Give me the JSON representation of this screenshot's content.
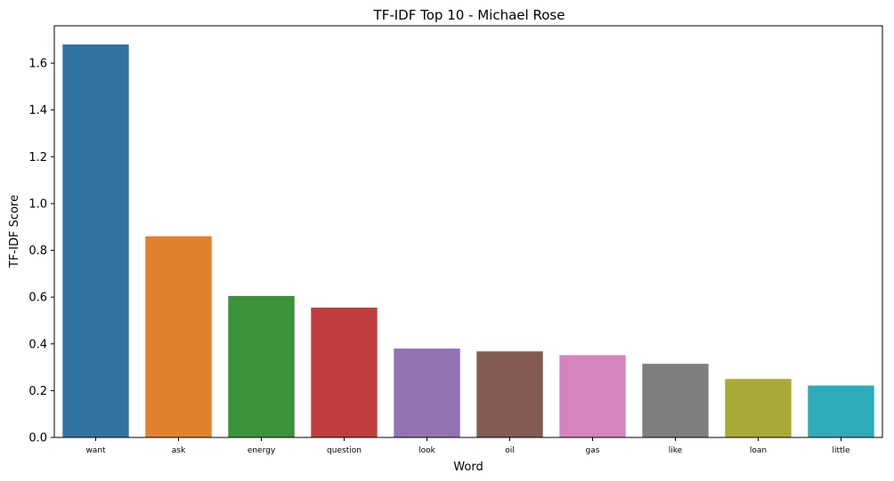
{
  "chart_data": {
    "type": "bar",
    "title": "TF-IDF Top 10 - Michael Rose",
    "xlabel": "Word",
    "ylabel": "TF-IDF Score",
    "categories": [
      "want",
      "ask",
      "energy",
      "question",
      "look",
      "oil",
      "gas",
      "like",
      "loan",
      "little"
    ],
    "values": [
      1.68,
      0.86,
      0.605,
      0.555,
      0.38,
      0.368,
      0.352,
      0.315,
      0.25,
      0.222
    ],
    "colors": [
      "#3274a1",
      "#e1812c",
      "#3a923a",
      "#c03d3e",
      "#9372b2",
      "#845b53",
      "#d684bd",
      "#7f7f7f",
      "#a9aa35",
      "#2eabb8"
    ],
    "yticks": [
      "0.0",
      "0.2",
      "0.4",
      "0.6",
      "0.8",
      "1.0",
      "1.2",
      "1.4",
      "1.6"
    ],
    "ylim": [
      0,
      1.76
    ],
    "grid": false,
    "legend": "none"
  }
}
